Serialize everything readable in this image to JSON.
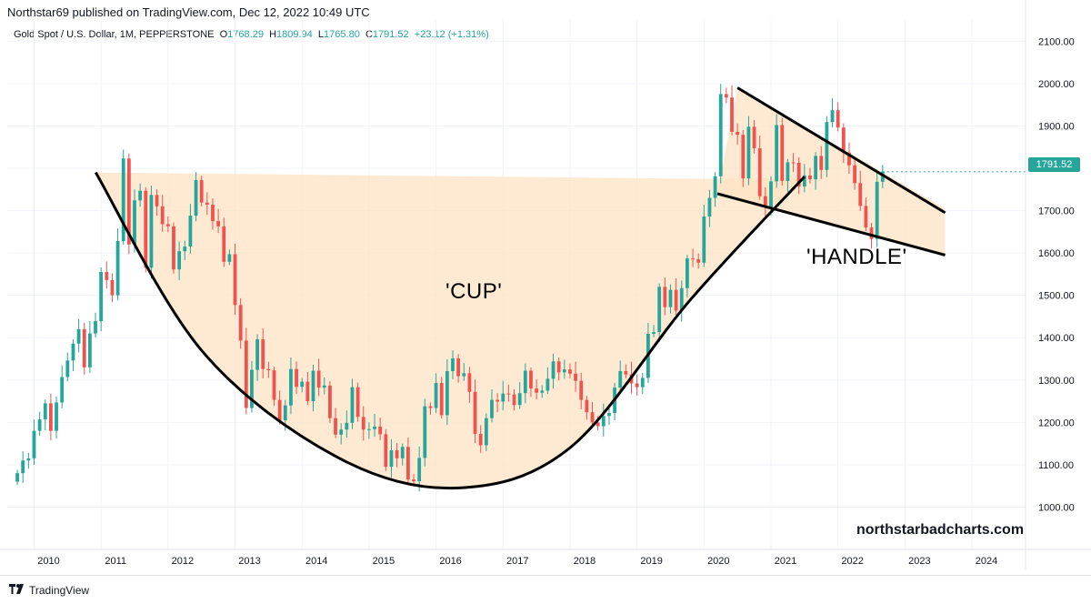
{
  "header": {
    "publisher": "Northstar69 published on TradingView.com, Dec 12, 2022 10:49 UTC"
  },
  "legend": {
    "symbol": "Gold Spot / U.S. Dollar, 1M, PEPPERSTONE",
    "o_label": "O",
    "o_value": "1768.29",
    "h_label": "H",
    "h_value": "1809.94",
    "l_label": "L",
    "l_value": "1765.80",
    "c_label": "C",
    "c_value": "1791.52",
    "change": "+23.12 (+1.31%)"
  },
  "last_price_label": "1791.52",
  "annotations": {
    "cup": "'CUP'",
    "handle": "'HANDLE'",
    "watermark": "northstarbadcharts.com"
  },
  "footer": {
    "brand": "TradingView"
  },
  "colors": {
    "up": "#26a69a",
    "down": "#ef5350",
    "fill": "#fde3c4",
    "line": "#000000"
  },
  "chart_data": {
    "type": "candlestick",
    "title": "Gold Spot / U.S. Dollar, 1M, PEPPERSTONE",
    "ylim": [
      900,
      2150
    ],
    "y_ticks": [
      "1000.00",
      "1100.00",
      "1200.00",
      "1300.00",
      "1400.00",
      "1500.00",
      "1600.00",
      "1700.00",
      "1800.00",
      "1900.00",
      "2000.00",
      "2100.00"
    ],
    "xlim": [
      2009.6,
      2024.8
    ],
    "x_ticks": [
      "2010",
      "2011",
      "2012",
      "2013",
      "2014",
      "2015",
      "2016",
      "2017",
      "2018",
      "2019",
      "2020",
      "2021",
      "2022",
      "2023",
      "2024"
    ],
    "grid": true,
    "series": [
      {
        "name": "Gold Spot / U.S. Dollar",
        "monthly_closes": [
          1080,
          1110,
          1115,
          1180,
          1207,
          1245,
          1180,
          1247,
          1307,
          1346,
          1386,
          1420,
          1330,
          1410,
          1439,
          1555,
          1536,
          1500,
          1628,
          1823,
          1620,
          1724,
          1747,
          1565,
          1737,
          1710,
          1668,
          1663,
          1561,
          1604,
          1615,
          1688,
          1772,
          1719,
          1714,
          1675,
          1663,
          1579,
          1597,
          1477,
          1393,
          1234,
          1324,
          1396,
          1326,
          1323,
          1253,
          1205,
          1240,
          1326,
          1284,
          1296,
          1250,
          1322,
          1282,
          1287,
          1210,
          1171,
          1183,
          1199,
          1283,
          1213,
          1183,
          1184,
          1190,
          1172,
          1095,
          1134,
          1115,
          1142,
          1065,
          1061,
          1116,
          1238,
          1234,
          1293,
          1217,
          1321,
          1351,
          1309,
          1316,
          1272,
          1173,
          1146,
          1210,
          1253,
          1249,
          1268,
          1266,
          1241,
          1269,
          1322,
          1280,
          1270,
          1275,
          1303,
          1344,
          1318,
          1325,
          1315,
          1298,
          1253,
          1224,
          1200,
          1191,
          1215,
          1222,
          1282,
          1321,
          1313,
          1292,
          1283,
          1305,
          1409,
          1413,
          1520,
          1472,
          1513,
          1464,
          1517,
          1587,
          1585,
          1577,
          1686,
          1730,
          1781,
          1975,
          1967,
          1886,
          1879,
          1776,
          1898,
          1847,
          1734,
          1707,
          1769,
          1902,
          1770,
          1814,
          1813,
          1757,
          1783,
          1774,
          1829,
          1796,
          1909,
          1937,
          1896,
          1837,
          1807,
          1765,
          1711,
          1660,
          1633,
          1768,
          1792
        ],
        "last": 1791.52
      }
    ],
    "overlays": {
      "cup_curve": [
        [
          2010.92,
          1790
        ],
        [
          2012.5,
          1370
        ],
        [
          2014.5,
          1120
        ],
        [
          2016.3,
          1045
        ],
        [
          2018.0,
          1140
        ],
        [
          2019.8,
          1490
        ],
        [
          2021.5,
          1780
        ]
      ],
      "cup_fill_top": [
        [
          2010.92,
          1790
        ],
        [
          2020.0,
          1775
        ]
      ],
      "handle_upper": [
        [
          2020.5,
          1990
        ],
        [
          2023.6,
          1695
        ]
      ],
      "handle_lower": [
        [
          2020.2,
          1740
        ],
        [
          2023.6,
          1595
        ]
      ]
    }
  }
}
